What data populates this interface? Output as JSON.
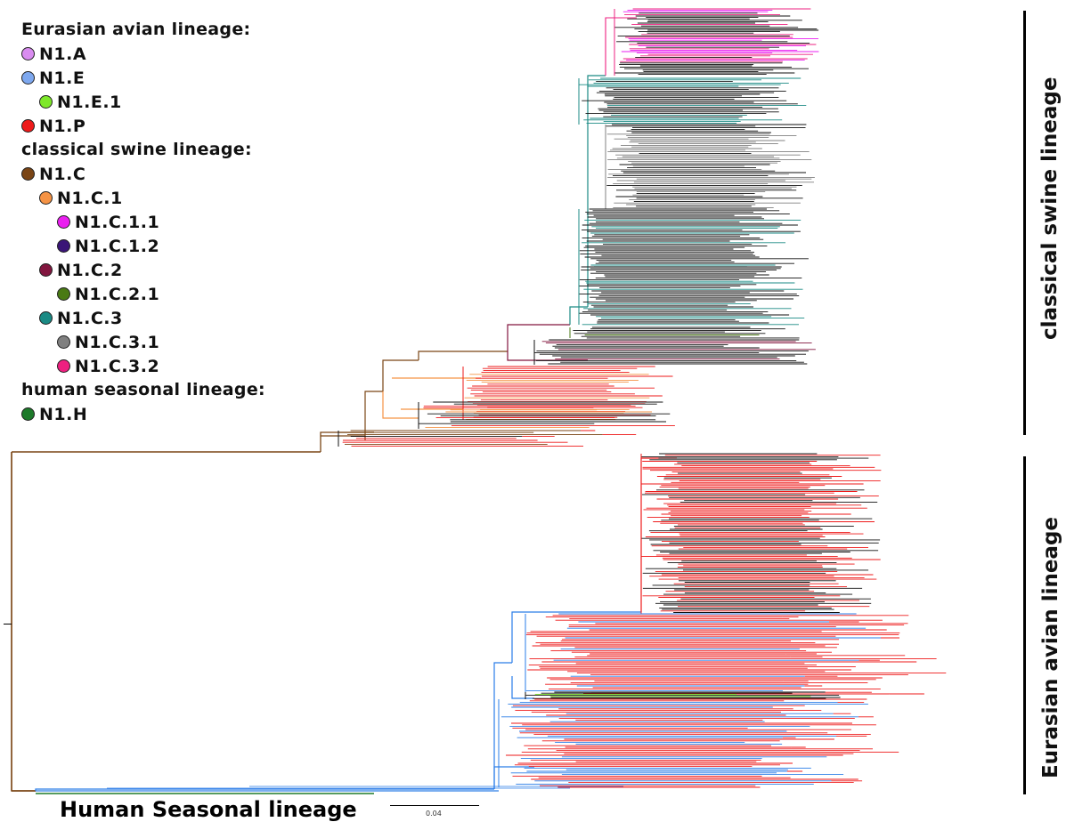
{
  "legend": {
    "groups": [
      {
        "heading": "Eurasian avian lineage:",
        "items": [
          {
            "label": "N1.A",
            "color": "#d98cf0",
            "indent": 0
          },
          {
            "label": "N1.E",
            "color": "#7ea8ef",
            "indent": 0
          },
          {
            "label": "N1.E.1",
            "color": "#7ee82a",
            "indent": 1
          },
          {
            "label": "N1.P",
            "color": "#ee1a1a",
            "indent": 0
          }
        ]
      },
      {
        "heading": "classical swine lineage:",
        "items": [
          {
            "label": "N1.C",
            "color": "#7a4515",
            "indent": 0
          },
          {
            "label": "N1.C.1",
            "color": "#f59345",
            "indent": 1
          },
          {
            "label": "N1.C.1.1",
            "color": "#ea1ff0",
            "indent": 2
          },
          {
            "label": "N1.C.1.2",
            "color": "#3a1577",
            "indent": 2
          },
          {
            "label": "N1.C.2",
            "color": "#82163f",
            "indent": 1
          },
          {
            "label": "N1.C.2.1",
            "color": "#4a7a14",
            "indent": 2
          },
          {
            "label": "N1.C.3",
            "color": "#1a8a84",
            "indent": 1
          },
          {
            "label": "N1.C.3.1",
            "color": "#808080",
            "indent": 2
          },
          {
            "label": "N1.C.3.2",
            "color": "#ee2080",
            "indent": 2
          }
        ]
      },
      {
        "heading": "human seasonal lineage:",
        "items": [
          {
            "label": "N1.H",
            "color": "#1d7a2a",
            "indent": 0
          }
        ]
      }
    ]
  },
  "clade_labels": {
    "classical_swine": "classical swine lineage",
    "eurasian_avian": "Eurasian avian lineage",
    "human_seasonal": "Human Seasonal lineage"
  },
  "scale_bar": {
    "label": "0.04"
  },
  "palette": {
    "black": "#111111",
    "red": "#ee1a1a",
    "blue": "#2a7de8",
    "teal": "#1a8a84",
    "gray": "#808080",
    "pink": "#ee2080",
    "magenta": "#ea1ff0",
    "brown": "#7a4515",
    "orange": "#f59345",
    "maroon": "#82163f",
    "olive": "#4a7a14",
    "human_green": "#1d7a2a",
    "avian_green": "#7ee82a"
  }
}
